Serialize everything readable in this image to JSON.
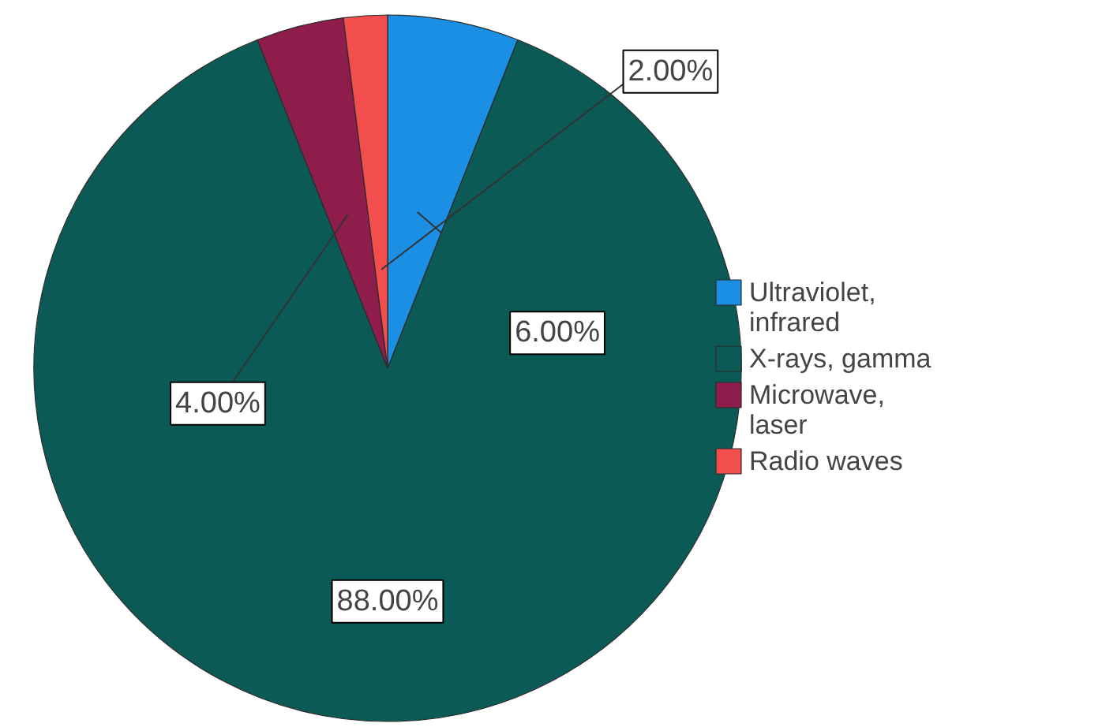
{
  "chart_data": {
    "type": "pie",
    "categories": [
      "Ultraviolet, infrared",
      "X-rays, gamma",
      "Microwave, laser",
      "Radio waves"
    ],
    "values": [
      6,
      88,
      4,
      2
    ],
    "colors": [
      "#1a8fe3",
      "#0b5a55",
      "#8e1d4b",
      "#f24e4e"
    ],
    "value_labels": [
      "6.00%",
      "88.00%",
      "4.00%",
      "2.00%"
    ],
    "legend": "right"
  }
}
